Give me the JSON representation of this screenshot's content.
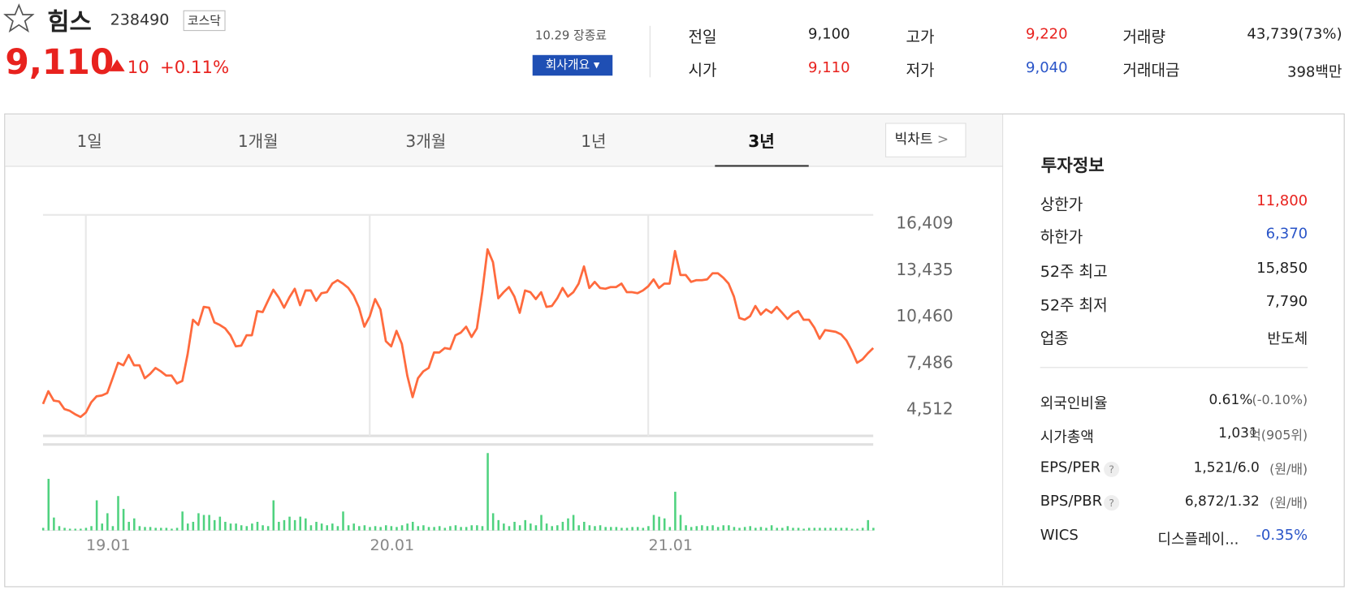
{
  "header": {
    "name": "힘스",
    "code": "238490",
    "market": "코스닥",
    "price": "9,110",
    "change": "10",
    "change_pct": "+0.11%",
    "status": "10.29 장종료",
    "company_button": "회사개요"
  },
  "stats": [
    {
      "label": "전일",
      "value": "9,100"
    },
    {
      "label": "고가",
      "value": "9,220"
    },
    {
      "label": "거래량",
      "value": "43,739(73%)"
    },
    {
      "label": "시가",
      "value": "9,110"
    },
    {
      "label": "저가",
      "value": "9,040"
    },
    {
      "label": "거래대금",
      "value": "398백만"
    }
  ],
  "tabs": [
    "1일",
    "1개월",
    "3개월",
    "1년",
    "3년"
  ],
  "active_tab": 4,
  "big_chart": "빅차트",
  "chart_data": {
    "type": "line",
    "color": "#ff6a3d",
    "categories": [
      null,
      null,
      null,
      null,
      null,
      null,
      null,
      null,
      "19.01",
      null,
      null,
      null,
      null,
      null,
      null,
      null,
      null,
      null,
      null,
      null,
      null,
      null,
      null,
      null,
      null,
      null,
      null,
      null,
      null,
      null,
      null,
      null,
      null,
      null,
      null,
      null,
      null,
      null,
      null,
      null,
      null,
      null,
      null,
      null,
      null,
      null,
      null,
      null,
      null,
      null,
      null,
      null,
      null,
      null,
      null,
      null,
      null,
      null,
      null,
      null,
      null,
      "20.01",
      null,
      null,
      null,
      null,
      null,
      null,
      null,
      null,
      null,
      null,
      null,
      null,
      null,
      null,
      null,
      null,
      null,
      null,
      null,
      null,
      null,
      null,
      null,
      null,
      null,
      null,
      null,
      null,
      null,
      null,
      null,
      null,
      null,
      null,
      null,
      null,
      null,
      null,
      null,
      null,
      null,
      null,
      null,
      null,
      null,
      null,
      null,
      null,
      null,
      null,
      null,
      "21.01",
      null,
      null,
      null,
      null,
      null,
      null,
      null,
      null,
      null,
      null,
      null,
      null,
      null,
      null,
      null,
      null,
      null,
      null,
      null,
      null,
      null,
      null,
      null,
      null,
      null,
      null,
      null,
      null,
      null,
      null,
      null,
      null,
      null,
      null,
      null,
      null,
      null,
      null,
      null,
      null,
      null,
      null
    ],
    "values": [
      4790,
      5610,
      5010,
      4950,
      4460,
      4350,
      4130,
      3960,
      4240,
      4900,
      5280,
      5340,
      5500,
      6440,
      7430,
      7270,
      7930,
      7270,
      7270,
      6440,
      6720,
      7100,
      6880,
      6610,
      6610,
      6110,
      6270,
      7980,
      10190,
      9850,
      11010,
      10960,
      10020,
      9850,
      9630,
      9190,
      8480,
      8530,
      9190,
      9190,
      10740,
      10680,
      11400,
      12110,
      11620,
      10960,
      11620,
      12170,
      11120,
      12060,
      12060,
      11400,
      11890,
      11950,
      12500,
      12720,
      12500,
      12220,
      11730,
      10960,
      9740,
      10410,
      11510,
      10850,
      8810,
      8480,
      9470,
      8640,
      6610,
      5230,
      6440,
      6880,
      7100,
      8090,
      8090,
      8370,
      8310,
      9190,
      9360,
      9740,
      9080,
      9630,
      11950,
      14700,
      13880,
      11560,
      11950,
      12280,
      11670,
      10630,
      12060,
      11950,
      11510,
      11950,
      11010,
      11070,
      11560,
      12220,
      11670,
      11950,
      12500,
      13600,
      12220,
      12610,
      12220,
      12170,
      12280,
      12280,
      12500,
      11950,
      11950,
      11890,
      12060,
      12330,
      12770,
      12220,
      12500,
      12500,
      14590,
      13050,
      13050,
      12610,
      12720,
      12720,
      12770,
      13160,
      13160,
      12880,
      12500,
      11670,
      10300,
      10190,
      10410,
      11070,
      10520,
      10850,
      10630,
      11010,
      10630,
      10240,
      10570,
      10740,
      10190,
      10190,
      9690,
      8970,
      9520,
      9470,
      9410,
      9250,
      8860,
      8200,
      7430,
      7650,
      8040,
      8370
    ],
    "volume": {
      "color": "#4fd27f",
      "values": [
        3,
        60,
        15,
        5,
        3,
        2,
        2,
        2,
        3,
        5,
        35,
        8,
        20,
        5,
        40,
        25,
        10,
        14,
        5,
        4,
        4,
        3,
        3,
        3,
        2,
        3,
        22,
        8,
        10,
        20,
        18,
        18,
        12,
        16,
        10,
        8,
        8,
        6,
        5,
        8,
        10,
        6,
        5,
        35,
        10,
        12,
        16,
        12,
        16,
        14,
        6,
        10,
        8,
        6,
        8,
        5,
        22,
        6,
        8,
        5,
        6,
        4,
        5,
        4,
        6,
        5,
        4,
        6,
        8,
        10,
        5,
        6,
        4,
        4,
        5,
        3,
        5,
        6,
        4,
        4,
        6,
        6,
        5,
        90,
        20,
        12,
        8,
        5,
        10,
        6,
        12,
        8,
        6,
        18,
        8,
        5,
        6,
        10,
        14,
        18,
        6,
        10,
        6,
        5,
        6,
        4,
        4,
        4,
        3,
        3,
        4,
        4,
        3,
        5,
        18,
        16,
        14,
        4,
        45,
        18,
        6,
        4,
        5,
        6,
        5,
        6,
        4,
        6,
        6,
        4,
        3,
        4,
        5,
        3,
        4,
        3,
        6,
        3,
        3,
        5,
        3,
        3,
        2,
        3,
        3,
        3,
        3,
        3,
        3,
        3,
        3,
        2,
        2,
        3,
        12,
        3
      ]
    },
    "ylim": [
      2750,
      16900
    ],
    "yticks": [
      16409,
      13435,
      10460,
      7486,
      4512
    ],
    "yticks_labels": [
      "16,409",
      "13,435",
      "10,460",
      "7,486",
      "4,512"
    ]
  },
  "invest": {
    "title": "투자정보",
    "rows": [
      {
        "label": "상한가",
        "value": "11,800",
        "tone": "up"
      },
      {
        "label": "하한가",
        "value": "6,370",
        "tone": "down"
      },
      {
        "label": "52주 최고",
        "value": "15,850"
      },
      {
        "label": "52주 최저",
        "value": "7,790"
      },
      {
        "label": "업종",
        "value": "반도체"
      }
    ],
    "rows2": [
      {
        "label": "외국인비율",
        "value": "0.61%",
        "note": "(-0.10%)"
      },
      {
        "label": "시가총액",
        "value": "1,031",
        "note": "억(905위)"
      },
      {
        "label": "EPS/PER",
        "help": "?",
        "value": "1,521/6.0",
        "note": "(원/배)"
      },
      {
        "label": "BPS/PBR",
        "help": "?",
        "value": "6,872/1.32",
        "note": "(원/배)"
      },
      {
        "label": "WICS",
        "value": "디스플레이...",
        "note": "-0.35%"
      }
    ]
  }
}
